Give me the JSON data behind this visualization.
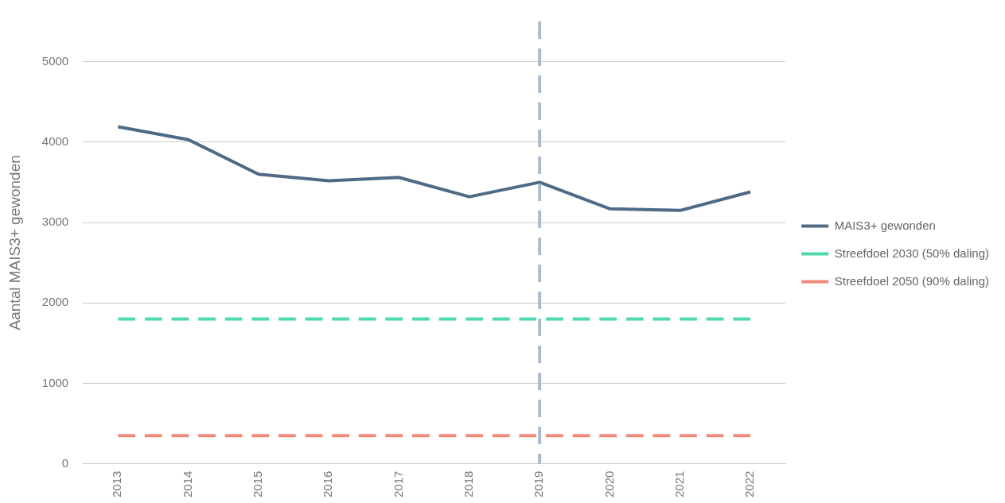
{
  "chart_data": {
    "type": "line",
    "ylabel": "Aantal MAIS3+ gewonden",
    "categories": [
      "2013",
      "2014",
      "2015",
      "2016",
      "2017",
      "2018",
      "2019",
      "2020",
      "2021",
      "2022"
    ],
    "series": [
      {
        "name": "MAIS3+ gewonden",
        "color": "#4f6a85",
        "values": [
          4190,
          4030,
          3600,
          3520,
          3560,
          3320,
          3500,
          3170,
          3150,
          3380
        ]
      },
      {
        "name": "Streefdoel 2030 (50% daling)",
        "color": "#4fd8b0",
        "line_style": "dashed",
        "values": [
          1800,
          1800,
          1800,
          1800,
          1800,
          1800,
          1800,
          1800,
          1800,
          1800
        ]
      },
      {
        "name": "Streefdoel 2050 (90% daling)",
        "color": "#f28a7c",
        "line_style": "dashed",
        "values": [
          350,
          350,
          350,
          350,
          350,
          350,
          350,
          350,
          350,
          350
        ]
      }
    ],
    "ref_lines": [
      {
        "axis": "x",
        "value": "2019",
        "color": "#a9bccf",
        "line_style": "dashed"
      }
    ],
    "ylim": [
      0,
      5500
    ],
    "yticks": [
      0,
      1000,
      2000,
      3000,
      4000,
      5000
    ],
    "grid": "y",
    "legend": "right",
    "marker": "none",
    "line_style": "solid"
  }
}
